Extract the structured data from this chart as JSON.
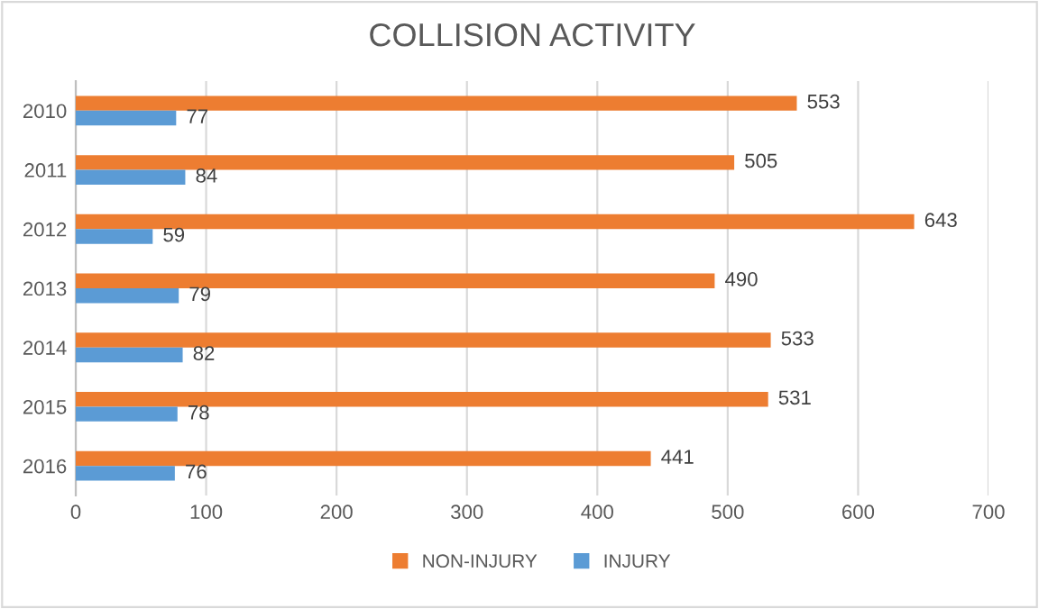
{
  "chart_data": {
    "type": "bar",
    "orientation": "horizontal",
    "title": "COLLISION ACTIVITY",
    "categories": [
      "2010",
      "2011",
      "2012",
      "2013",
      "2014",
      "2015",
      "2016"
    ],
    "series": [
      {
        "name": "NON-INJURY",
        "color": "#ed7d31",
        "values": [
          553,
          505,
          643,
          490,
          533,
          531,
          441
        ]
      },
      {
        "name": "INJURY",
        "color": "#5b9bd5",
        "values": [
          77,
          84,
          59,
          79,
          82,
          78,
          76
        ]
      }
    ],
    "xlim": [
      0,
      700
    ],
    "xticks": [
      0,
      100,
      200,
      300,
      400,
      500,
      600,
      700
    ],
    "grid": "x",
    "legend": "bottom",
    "data_labels": true
  }
}
